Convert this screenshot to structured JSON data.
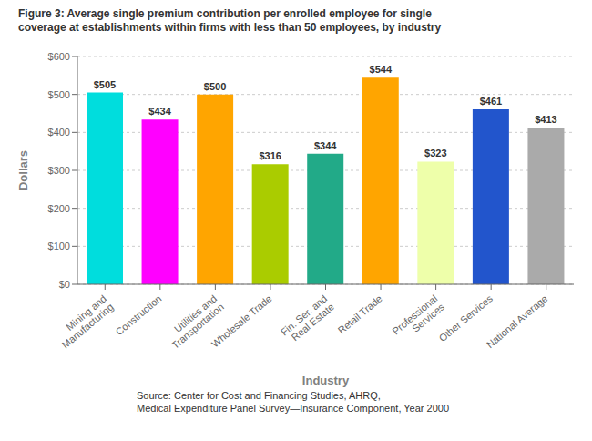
{
  "chart_data": {
    "type": "bar",
    "title": "Figure 3: Average single premium contribution per enrolled employee for single\ncoverage at establishments within firms with less than 50 employees, by industry",
    "categories": [
      "Mining and\nManufacturing",
      "Construction",
      "Utilities and\nTransportation",
      "Wholesale Trade",
      "Fin. Ser. and\nReal Estate",
      "Retail Trade",
      "Professional\nServices",
      "Other Services",
      "National Average"
    ],
    "values": [
      505,
      434,
      500,
      316,
      344,
      544,
      323,
      461,
      413
    ],
    "value_labels": [
      "$505",
      "$434",
      "$500",
      "$316",
      "$344",
      "$544",
      "$323",
      "$461",
      "$413"
    ],
    "xlabel": "Industry",
    "ylabel": "Dollars",
    "ylim": [
      0,
      600
    ],
    "yticks": [
      {
        "value": 0,
        "label": "$0"
      },
      {
        "value": 100,
        "label": "$100"
      },
      {
        "value": 200,
        "label": "$200"
      },
      {
        "value": 300,
        "label": "$300"
      },
      {
        "value": 400,
        "label": "$400"
      },
      {
        "value": 500,
        "label": "$500"
      },
      {
        "value": 600,
        "label": "$600"
      }
    ],
    "colors": [
      "#00DDDD",
      "#FF00FF",
      "#FFA500",
      "#AACC00",
      "#22AA88",
      "#FFA500",
      "#EEFFAA",
      "#2255CC",
      "#AAAAAA"
    ],
    "grid": true,
    "annotations": [
      "Source: Center for Cost and Financing Studies, AHRQ,\nMedical Expenditure Panel Survey—Insurance Component, Year 2000"
    ]
  }
}
